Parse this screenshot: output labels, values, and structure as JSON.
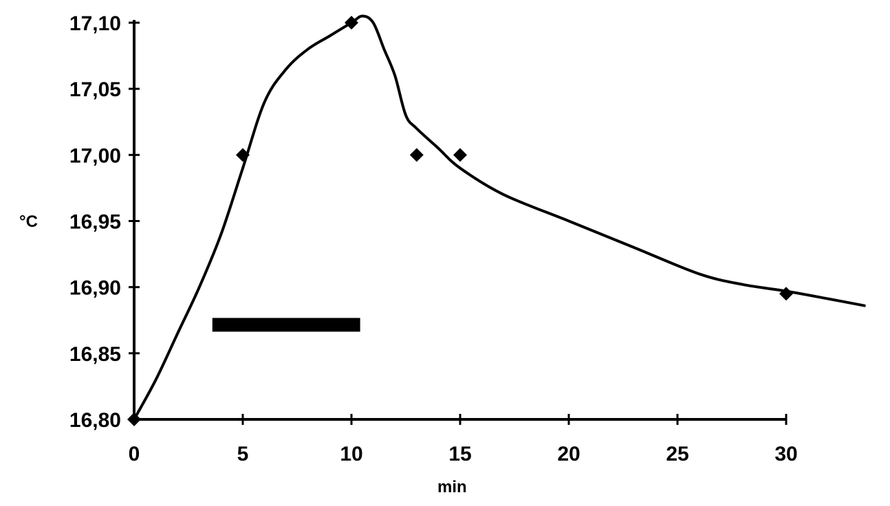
{
  "chart_data": {
    "type": "line",
    "title": "",
    "xlabel": "min",
    "ylabel": "°C",
    "xlim": [
      0,
      34
    ],
    "ylim": [
      16.8,
      17.1
    ],
    "x_ticks": [
      0,
      5,
      10,
      15,
      20,
      25,
      30
    ],
    "x_tick_labels": [
      "0",
      "5",
      "10",
      "15",
      "20",
      "25",
      "30"
    ],
    "y_ticks": [
      16.8,
      16.85,
      16.9,
      16.95,
      17.0,
      17.05,
      17.1
    ],
    "y_tick_labels": [
      "16,80",
      "16,85",
      "16,90",
      "16,95",
      "17,00",
      "17,05",
      "17,10"
    ],
    "grid": false,
    "points": {
      "x": [
        0,
        5,
        10,
        13,
        15,
        30
      ],
      "y": [
        16.8,
        17.0,
        17.1,
        17.0,
        17.0,
        16.895
      ]
    },
    "curve": {
      "x": [
        0,
        1,
        2,
        3,
        4,
        5,
        6,
        7,
        8,
        9,
        10,
        10.5,
        11,
        11.5,
        12,
        12.5,
        13,
        14,
        15,
        17,
        20,
        23,
        26,
        28,
        30,
        32,
        33.6
      ],
      "y": [
        16.8,
        16.83,
        16.865,
        16.9,
        16.94,
        16.99,
        17.04,
        17.065,
        17.08,
        17.09,
        17.1,
        17.105,
        17.1,
        17.08,
        17.06,
        17.03,
        17.02,
        17.005,
        16.99,
        16.97,
        16.95,
        16.93,
        16.91,
        16.902,
        16.897,
        16.891,
        16.886
      ]
    },
    "bar": {
      "x_start": 3.6,
      "x_end": 10.4,
      "y": 16.871
    }
  }
}
